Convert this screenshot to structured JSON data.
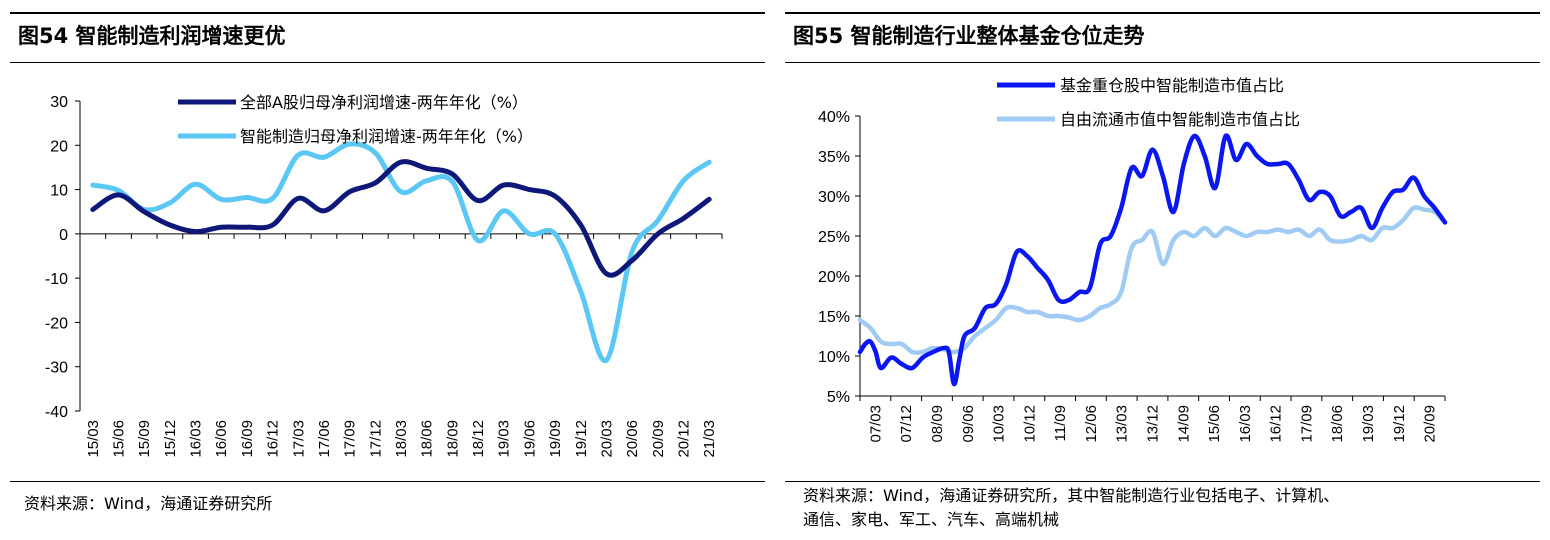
{
  "left": {
    "title": "图54 智能制造利润增速更优",
    "source": "资料来源：Wind，海通证券研究所",
    "chart_data": {
      "type": "line",
      "ylim": [
        -40,
        30
      ],
      "yticks": [
        30,
        20,
        10,
        0,
        -10,
        -20,
        -30,
        -40
      ],
      "xticks": [
        "15/03",
        "15/06",
        "15/09",
        "15/12",
        "16/03",
        "16/06",
        "16/09",
        "16/12",
        "17/03",
        "17/06",
        "17/09",
        "17/12",
        "18/03",
        "18/06",
        "18/09",
        "18/12",
        "19/03",
        "19/06",
        "19/09",
        "19/12",
        "20/03",
        "20/06",
        "20/09",
        "20/12",
        "21/03"
      ],
      "legend_position": "top-center",
      "series": [
        {
          "name": "全部A股归母净利润增速-两年年化（%）",
          "color": "#0d1878",
          "values": [
            5.5,
            8.8,
            5.0,
            2.0,
            0.5,
            1.5,
            1.5,
            2.0,
            8.0,
            5.2,
            9.5,
            11.5,
            16.2,
            14.8,
            13.5,
            7.5,
            11.0,
            10.0,
            8.5,
            2.0,
            -9.0,
            -6.0,
            0.0,
            3.5,
            7.8
          ]
        },
        {
          "name": "智能制造归母净利润增速-两年年化（%）",
          "color": "#5bc7f5",
          "values": [
            11.0,
            9.8,
            5.5,
            7.0,
            11.2,
            7.8,
            8.2,
            8.0,
            17.8,
            17.3,
            20.3,
            18.3,
            9.5,
            12.0,
            11.8,
            -1.5,
            5.2,
            0.0,
            0.0,
            -13.0,
            -28.5,
            -4.0,
            3.0,
            12.0,
            16.2
          ]
        }
      ]
    }
  },
  "right": {
    "title": "图55 智能制造行业整体基金仓位走势",
    "source_line1": "资料来源：Wind，海通证券研究所，其中智能制造行业包括电子、计算机、",
    "source_line2": "通信、家电、军工、汽车、高端机械",
    "chart_data": {
      "type": "line",
      "ylim": [
        5,
        40
      ],
      "yticks": [
        "40%",
        "35%",
        "30%",
        "25%",
        "20%",
        "15%",
        "10%",
        "5%"
      ],
      "ytick_values": [
        40,
        35,
        30,
        25,
        20,
        15,
        10,
        5
      ],
      "xticks": [
        "07/03",
        "07/12",
        "08/09",
        "09/06",
        "10/03",
        "10/12",
        "11/09",
        "12/06",
        "13/03",
        "13/12",
        "14/09",
        "15/06",
        "16/03",
        "16/12",
        "17/09",
        "18/06",
        "19/03",
        "19/12",
        "20/09"
      ],
      "x_range": [
        0,
        56
      ],
      "legend_position": "top-center",
      "series": [
        {
          "name": "基金重仓股中智能制造市值占比",
          "color": "#0a17f0",
          "points": [
            [
              0,
              10.5
            ],
            [
              0.5,
              11.5
            ],
            [
              1,
              11.8
            ],
            [
              1.5,
              10.5
            ],
            [
              2,
              8.5
            ],
            [
              3,
              9.8
            ],
            [
              4,
              9.0
            ],
            [
              5,
              8.5
            ],
            [
              6,
              9.8
            ],
            [
              7,
              10.5
            ],
            [
              8,
              11.0
            ],
            [
              8.5,
              10.5
            ],
            [
              9,
              6.5
            ],
            [
              9.5,
              9.5
            ],
            [
              10,
              12.5
            ],
            [
              11,
              13.5
            ],
            [
              12,
              16.0
            ],
            [
              13,
              16.5
            ],
            [
              14,
              19.0
            ],
            [
              15,
              23.0
            ],
            [
              16,
              22.5
            ],
            [
              17,
              21.0
            ],
            [
              18,
              19.5
            ],
            [
              19,
              17.0
            ],
            [
              20,
              17.0
            ],
            [
              21,
              18.0
            ],
            [
              22,
              18.5
            ],
            [
              23,
              24.0
            ],
            [
              24,
              25.0
            ],
            [
              25,
              28.5
            ],
            [
              26,
              33.5
            ],
            [
              27,
              32.5
            ],
            [
              28,
              35.8
            ],
            [
              29,
              32.5
            ],
            [
              30,
              28.0
            ],
            [
              31,
              34.0
            ],
            [
              32,
              37.5
            ],
            [
              33,
              35.0
            ],
            [
              34,
              31.0
            ],
            [
              35,
              37.5
            ],
            [
              36,
              34.5
            ],
            [
              37,
              36.5
            ],
            [
              38,
              35.0
            ],
            [
              39,
              34.0
            ],
            [
              40,
              34.0
            ],
            [
              41,
              34.0
            ],
            [
              42,
              32.0
            ],
            [
              43,
              29.5
            ],
            [
              44,
              30.5
            ],
            [
              45,
              30.0
            ],
            [
              46,
              27.5
            ],
            [
              47,
              28.0
            ],
            [
              48,
              28.5
            ],
            [
              49,
              26.0
            ],
            [
              50,
              28.5
            ],
            [
              51,
              30.5
            ],
            [
              52,
              30.8
            ],
            [
              53,
              32.3
            ],
            [
              54,
              30.0
            ],
            [
              55,
              28.5
            ],
            [
              56,
              26.7
            ]
          ]
        },
        {
          "name": "自由流通市值中智能制造市值占比",
          "color": "#9fcbf5",
          "points": [
            [
              0,
              14.5
            ],
            [
              1,
              13.5
            ],
            [
              2,
              11.8
            ],
            [
              3,
              11.5
            ],
            [
              4,
              11.5
            ],
            [
              5,
              10.5
            ],
            [
              6,
              10.5
            ],
            [
              7,
              11.0
            ],
            [
              8,
              10.8
            ],
            [
              9,
              10.5
            ],
            [
              10,
              11.0
            ],
            [
              11,
              12.5
            ],
            [
              12,
              13.5
            ],
            [
              13,
              14.5
            ],
            [
              14,
              16.0
            ],
            [
              15,
              16.0
            ],
            [
              16,
              15.5
            ],
            [
              17,
              15.5
            ],
            [
              18,
              15.0
            ],
            [
              19,
              15.0
            ],
            [
              20,
              14.8
            ],
            [
              21,
              14.5
            ],
            [
              22,
              15.0
            ],
            [
              23,
              16.0
            ],
            [
              24,
              16.5
            ],
            [
              25,
              18.0
            ],
            [
              26,
              23.5
            ],
            [
              27,
              24.5
            ],
            [
              28,
              25.5
            ],
            [
              29,
              21.5
            ],
            [
              30,
              24.5
            ],
            [
              31,
              25.5
            ],
            [
              32,
              25.0
            ],
            [
              33,
              26.0
            ],
            [
              34,
              25.0
            ],
            [
              35,
              26.0
            ],
            [
              36,
              25.5
            ],
            [
              37,
              25.0
            ],
            [
              38,
              25.5
            ],
            [
              39,
              25.5
            ],
            [
              40,
              25.8
            ],
            [
              41,
              25.5
            ],
            [
              42,
              25.8
            ],
            [
              43,
              25.0
            ],
            [
              44,
              25.8
            ],
            [
              45,
              24.5
            ],
            [
              46,
              24.3
            ],
            [
              47,
              24.5
            ],
            [
              48,
              25.0
            ],
            [
              49,
              24.5
            ],
            [
              50,
              26.0
            ],
            [
              51,
              26.0
            ],
            [
              52,
              27.0
            ],
            [
              53,
              28.5
            ],
            [
              54,
              28.3
            ],
            [
              55,
              28.0
            ],
            [
              56,
              26.7
            ]
          ]
        }
      ]
    }
  }
}
